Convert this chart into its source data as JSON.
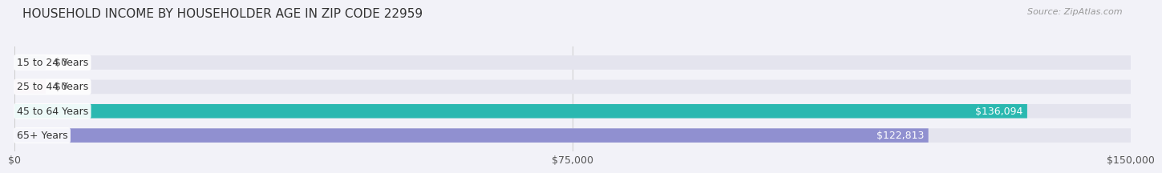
{
  "title": "HOUSEHOLD INCOME BY HOUSEHOLDER AGE IN ZIP CODE 22959",
  "source": "Source: ZipAtlas.com",
  "categories": [
    "15 to 24 Years",
    "25 to 44 Years",
    "45 to 64 Years",
    "65+ Years"
  ],
  "values": [
    0,
    0,
    136094,
    122813
  ],
  "bar_colors": [
    "#aabcd8",
    "#c4a8cc",
    "#2ab8b0",
    "#9090d0"
  ],
  "label_colors": [
    "#333333",
    "#333333",
    "#ffffff",
    "#ffffff"
  ],
  "value_labels": [
    "$0",
    "$0",
    "$136,094",
    "$122,813"
  ],
  "value_label_outside": [
    true,
    true,
    false,
    false
  ],
  "xlim": [
    0,
    150000
  ],
  "xticks": [
    0,
    75000,
    150000
  ],
  "xtick_labels": [
    "$0",
    "$75,000",
    "$150,000"
  ],
  "background_color": "#f2f2f8",
  "bar_bg_color": "#e4e4ee",
  "title_fontsize": 11,
  "source_fontsize": 8,
  "tick_fontsize": 9,
  "bar_label_fontsize": 9,
  "cat_label_fontsize": 9,
  "bar_height": 0.58,
  "bar_gap": 0.15
}
